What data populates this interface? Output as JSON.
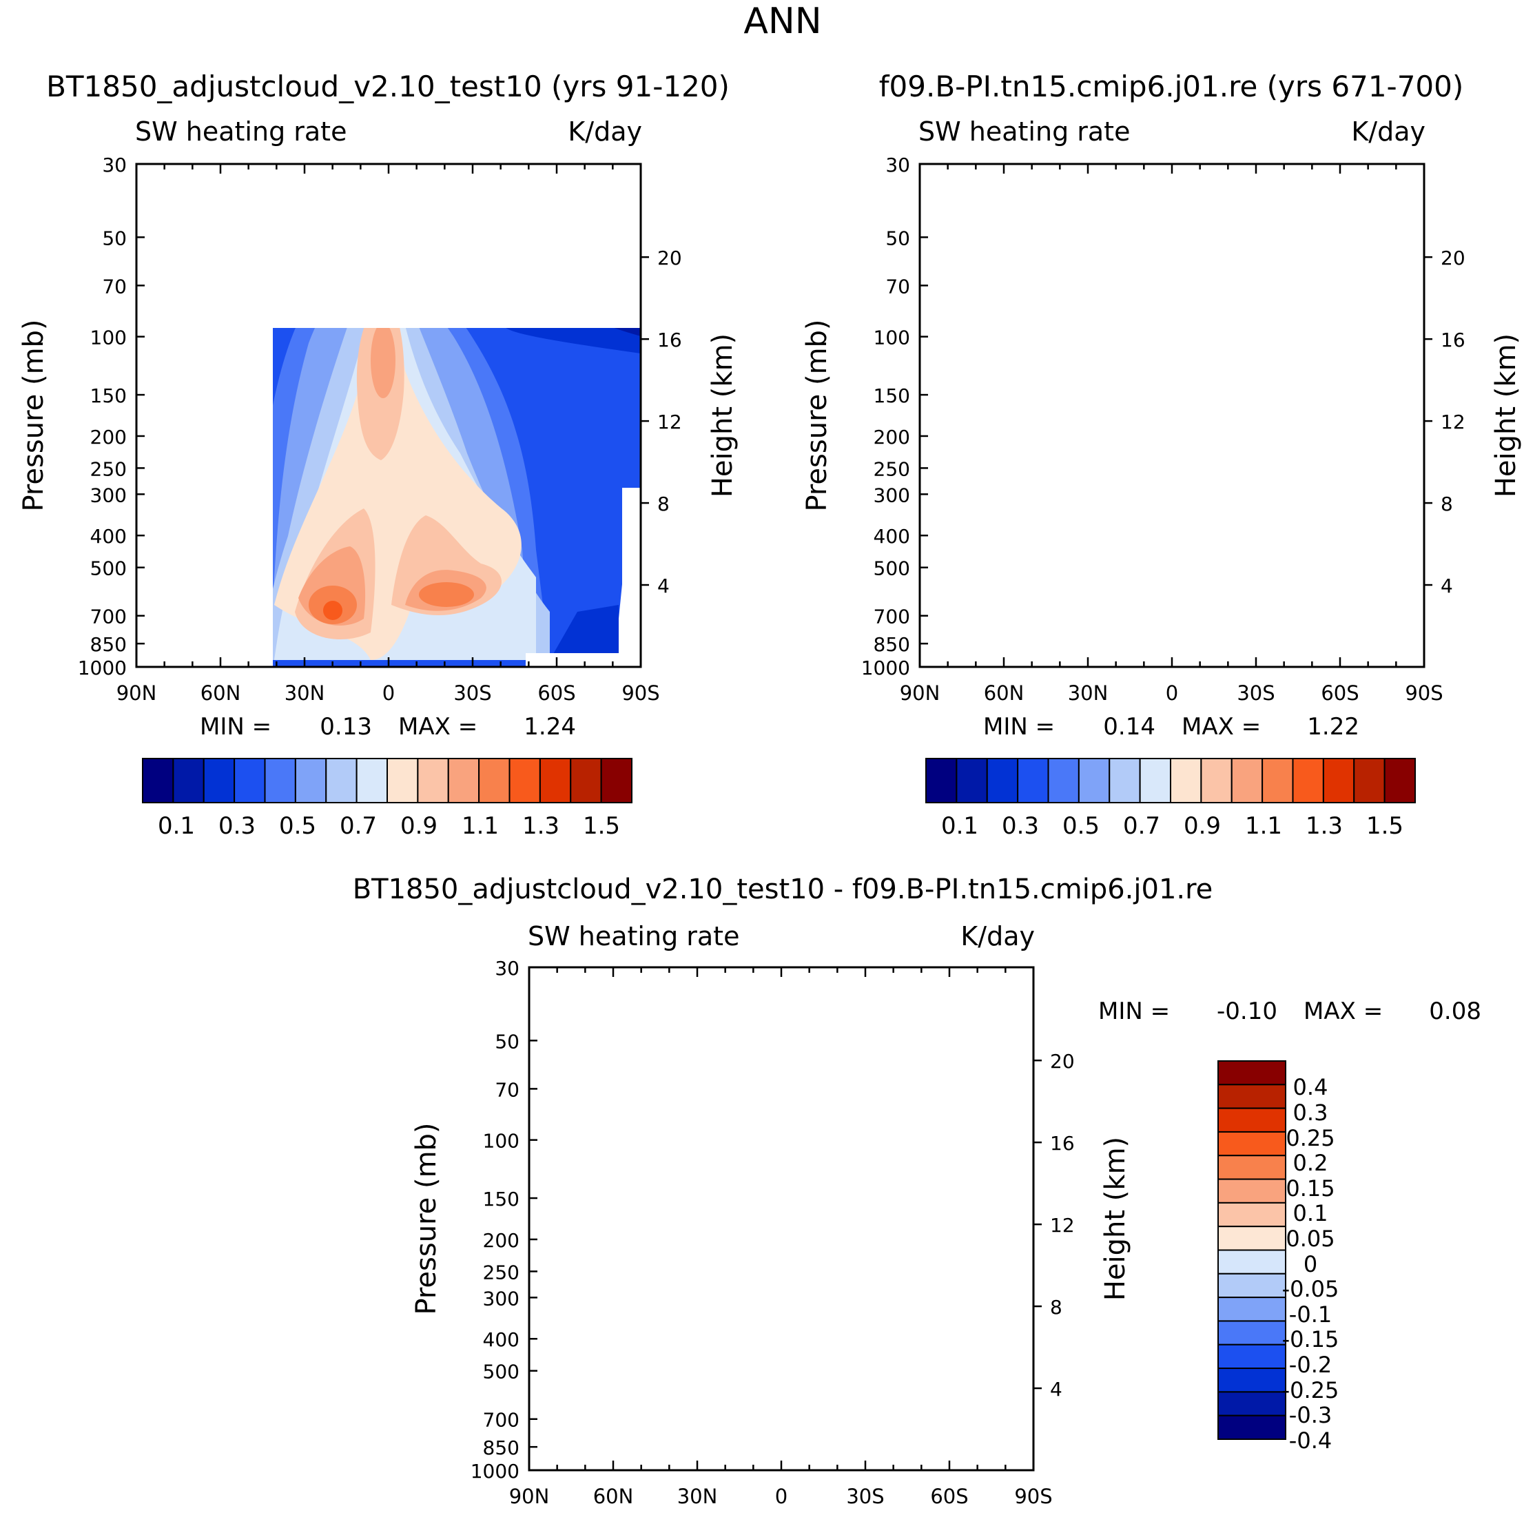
{
  "figure_title": "ANN",
  "colors": {
    "cmap_main": [
      "#000080",
      "#0019a8",
      "#0232d4",
      "#1c50f0",
      "#4a78f8",
      "#7fa3f8",
      "#b2cbf8",
      "#d9e8fa",
      "#fde4d0",
      "#fbc4a8",
      "#f9a37e",
      "#f8814c",
      "#f85a1c",
      "#e03300",
      "#b82200",
      "#880000"
    ],
    "cmap_diff": [
      "#000080",
      "#0019a8",
      "#0232d4",
      "#1c50f0",
      "#4a78f8",
      "#7fa3f8",
      "#b2cbf8",
      "#d6e6fb",
      "#fde7d5",
      "#fbc4a8",
      "#f9a37e",
      "#f8814c",
      "#f85a1c",
      "#e03300",
      "#b82200",
      "#880000"
    ]
  },
  "chart_data": [
    {
      "id": "panel-test",
      "type": "contour",
      "case_title": "BT1850_adjustcloud_v2.10_test10 (yrs 91-120)",
      "variable": "SW heating rate",
      "units": "K/day",
      "ylabel": "Pressure (mb)",
      "y2label": "Height (km)",
      "x_ticks": [
        "90N",
        "60N",
        "30N",
        "0",
        "30S",
        "60S",
        "90S"
      ],
      "y_ticks": [
        "30",
        "50",
        "70",
        "100",
        "150",
        "200",
        "250",
        "300",
        "400",
        "500",
        "700",
        "850",
        "1000"
      ],
      "height_ticks": [
        "20",
        "16",
        "12",
        "8",
        "4"
      ],
      "min_label": "MIN =",
      "min_value": "0.13",
      "max_label": "MAX =",
      "max_value": "1.24",
      "colorbar_labels": [
        "0.1",
        "0.3",
        "0.5",
        "0.7",
        "0.9",
        "1.1",
        "1.3",
        "1.5"
      ]
    },
    {
      "id": "panel-control",
      "type": "contour",
      "case_title": "f09.B-PI.tn15.cmip6.j01.re (yrs 671-700)",
      "variable": "SW heating rate",
      "units": "K/day",
      "ylabel": "Pressure (mb)",
      "y2label": "Height (km)",
      "x_ticks": [
        "90N",
        "60N",
        "30N",
        "0",
        "30S",
        "60S",
        "90S"
      ],
      "y_ticks": [
        "30",
        "50",
        "70",
        "100",
        "150",
        "200",
        "250",
        "300",
        "400",
        "500",
        "700",
        "850",
        "1000"
      ],
      "height_ticks": [
        "20",
        "16",
        "12",
        "8",
        "4"
      ],
      "min_label": "MIN =",
      "min_value": "0.14",
      "max_label": "MAX =",
      "max_value": "1.22",
      "colorbar_labels": [
        "0.1",
        "0.3",
        "0.5",
        "0.7",
        "0.9",
        "1.1",
        "1.3",
        "1.5"
      ]
    },
    {
      "id": "panel-diff",
      "type": "contour",
      "case_title": "BT1850_adjustcloud_v2.10_test10 - f09.B-PI.tn15.cmip6.j01.re",
      "variable": "SW heating rate",
      "units": "K/day",
      "ylabel": "Pressure (mb)",
      "y2label": "Height (km)",
      "x_ticks": [
        "90N",
        "60N",
        "30N",
        "0",
        "30S",
        "60S",
        "90S"
      ],
      "y_ticks": [
        "30",
        "50",
        "70",
        "100",
        "150",
        "200",
        "250",
        "300",
        "400",
        "500",
        "700",
        "850",
        "1000"
      ],
      "height_ticks": [
        "20",
        "16",
        "12",
        "8",
        "4"
      ],
      "min_label": "MIN =",
      "min_value": "-0.10",
      "max_label": "MAX =",
      "max_value": "0.08",
      "colorbar_labels": [
        "0.4",
        "0.3",
        "0.25",
        "0.2",
        "0.15",
        "0.1",
        "0.05",
        "0",
        "-0.05",
        "-0.1",
        "-0.15",
        "-0.2",
        "-0.25",
        "-0.3",
        "-0.4"
      ]
    }
  ]
}
